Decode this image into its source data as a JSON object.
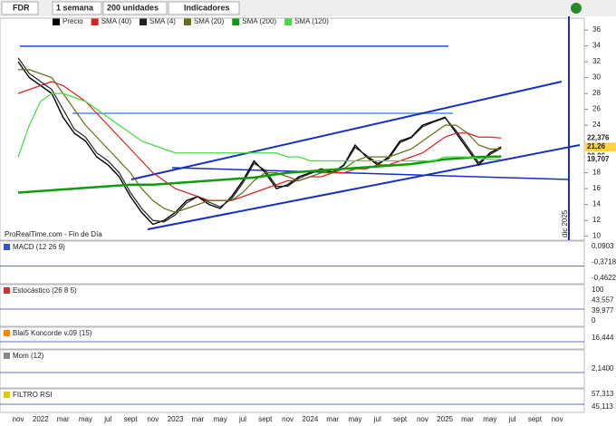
{
  "toolbar": {
    "symbol": "FDR",
    "period": "1 semana",
    "units": "200 unidades",
    "indicators": "Indicadores"
  },
  "chart_data": {
    "type": "line",
    "source": "ProRealTime.com - Fin de Día",
    "marker_label": "dic 2025",
    "categories": [
      "nov",
      null,
      "2022",
      null,
      "mar",
      null,
      "may",
      null,
      "jul",
      null,
      "sept",
      null,
      "nov",
      null,
      "2023",
      null,
      "mar",
      null,
      "may",
      null,
      "jul",
      null,
      "sept",
      null,
      "nov",
      null,
      "2024",
      null,
      "mar",
      null,
      "may",
      null,
      "jul",
      null,
      "sept",
      null,
      "nov",
      null,
      "2025",
      null,
      "mar",
      null,
      "may",
      null,
      "jul",
      null,
      "sept",
      null,
      "nov"
    ],
    "ylim": [
      9.5,
      37.5
    ],
    "yticks": [
      10,
      12,
      14,
      16,
      18,
      20,
      22,
      24,
      26,
      28,
      30,
      32,
      34,
      36
    ],
    "series": [
      {
        "name": "Precio",
        "color": "#000000",
        "last_label": "21,26",
        "values": [
          32,
          30,
          29,
          28,
          25,
          23,
          22,
          20,
          19,
          17.5,
          15,
          13,
          11.5,
          12,
          13,
          14.5,
          15,
          14,
          13.5,
          15,
          17,
          19.5,
          18,
          16,
          16.5,
          17.5,
          18,
          18.5,
          18,
          19,
          21.5,
          20,
          19,
          20,
          22,
          22.5,
          24,
          24.5,
          25,
          23,
          21,
          19,
          20.5,
          21.26,
          null,
          null,
          null,
          null,
          null
        ]
      },
      {
        "name": "SMA (40)",
        "color": "#e02020",
        "last_label": "22,376",
        "values": [
          28,
          28.5,
          29,
          29.5,
          29,
          28,
          27,
          25.5,
          24,
          22.5,
          21,
          19.5,
          18,
          17,
          16,
          15.5,
          15,
          14.5,
          14.5,
          14.5,
          15,
          15.5,
          16,
          16.5,
          17,
          17,
          17.5,
          17.5,
          18,
          18,
          18.5,
          18.5,
          19,
          19,
          19.5,
          20,
          20.5,
          21.5,
          22.5,
          23,
          23,
          22.5,
          22.5,
          22.376,
          null,
          null,
          null,
          null,
          null
        ]
      },
      {
        "name": "SMA (4)",
        "color": "#222222",
        "values": [
          32.5,
          30.5,
          29.5,
          28.5,
          26,
          23.5,
          22.5,
          20.5,
          19.5,
          18,
          15.5,
          13.5,
          12,
          11.8,
          12.7,
          14.2,
          15,
          14.3,
          13.7,
          14.7,
          16.7,
          19.2,
          18.3,
          16.3,
          16.3,
          17.3,
          17.9,
          18.4,
          18.1,
          18.9,
          21.2,
          20.2,
          19.2,
          19.8,
          21.8,
          22.4,
          23.8,
          24.4,
          24.9,
          23.3,
          21.3,
          19.3,
          20.3,
          21.1,
          null,
          null,
          null,
          null,
          null
        ]
      },
      {
        "name": "SMA (20)",
        "color": "#6b6b1a",
        "values": [
          31,
          31,
          30.5,
          30,
          28,
          26,
          24,
          22.5,
          21,
          19.5,
          18,
          16,
          14.5,
          13.5,
          13,
          13.5,
          14,
          14.5,
          14.5,
          14.5,
          15.5,
          17,
          18,
          18,
          17.5,
          17,
          17.5,
          18,
          18,
          18.5,
          19.5,
          20,
          20,
          20,
          20.5,
          21,
          22,
          23,
          24,
          24,
          23,
          21.5,
          21,
          21,
          null,
          null,
          null,
          null,
          null
        ]
      },
      {
        "name": "SMA (200)",
        "color": "#109a10",
        "last_label": "20,06",
        "values": [
          15.5,
          15.6,
          15.7,
          15.8,
          15.9,
          16,
          16.1,
          16.2,
          16.3,
          16.4,
          16.5,
          16.5,
          16.5,
          16.6,
          16.7,
          16.8,
          16.9,
          17,
          17.1,
          17.2,
          17.3,
          17.4,
          17.6,
          17.8,
          18,
          18.1,
          18.2,
          18.3,
          18.4,
          18.5,
          18.6,
          18.7,
          18.8,
          18.9,
          19,
          19.1,
          19.3,
          19.5,
          19.7,
          19.8,
          19.9,
          20,
          20.03,
          20.06,
          null,
          null,
          null,
          null,
          null
        ]
      },
      {
        "name": "SMA (120)",
        "color": "#3ee03e",
        "last_label": "19,707",
        "values": [
          20,
          24,
          27,
          28,
          28,
          27.5,
          27,
          26,
          25,
          24,
          23,
          22,
          21.5,
          21,
          20.5,
          20.5,
          20.5,
          20.5,
          20.5,
          20.5,
          20.5,
          20.5,
          20.5,
          20.5,
          20,
          20,
          19.5,
          19.5,
          19.5,
          19.5,
          19.5,
          19.5,
          19.5,
          19.5,
          19.5,
          19.5,
          19.5,
          19.5,
          20,
          20,
          20,
          19.8,
          19.7,
          19.707,
          null,
          null,
          null,
          null,
          null
        ]
      }
    ]
  },
  "panels": [
    {
      "title": "MACD (12 26 9)",
      "labels": [
        "0,0903",
        "-0,3718",
        "-0,4622"
      ]
    },
    {
      "title": "Estocástico (26 8 5)",
      "labels": [
        "100",
        "43,557",
        "39,977",
        "0"
      ]
    },
    {
      "title": "Blai5 Koncorde v.09 (15)",
      "labels": [
        "16,444"
      ]
    },
    {
      "title": "Mom (12)",
      "labels": [
        "2,1400"
      ]
    },
    {
      "title": "FILTRO RSI",
      "labels": [
        "57,313",
        "45,113"
      ]
    }
  ]
}
